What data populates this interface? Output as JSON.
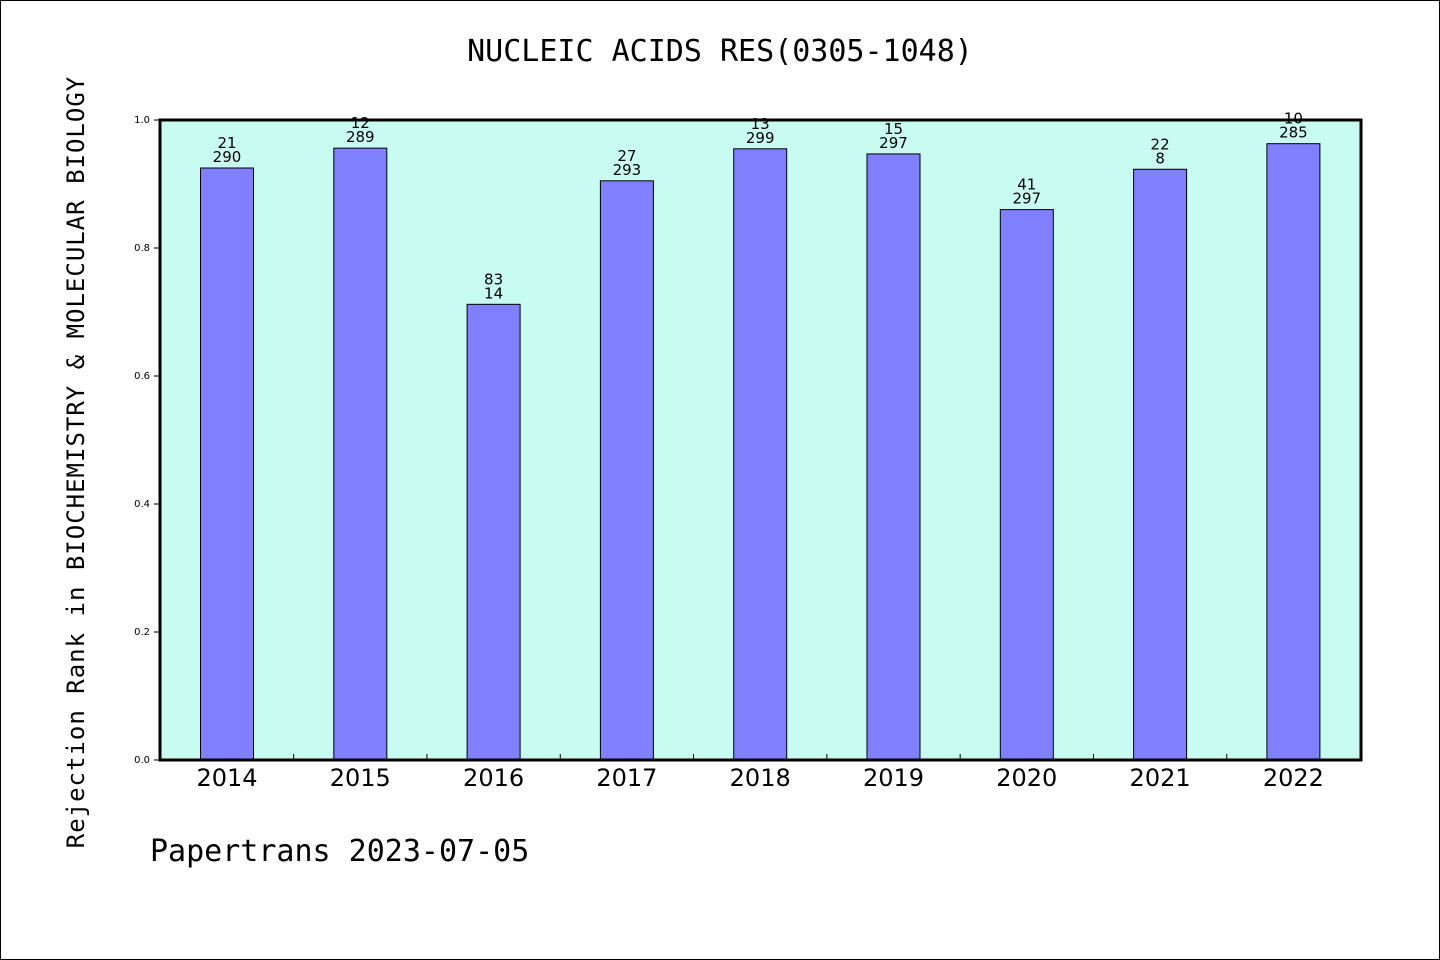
{
  "chart_data": {
    "type": "bar",
    "title": "NUCLEIC ACIDS RES(0305-1048)",
    "ylabel": "Rejection Rank in BIOCHEMISTRY & MOLECULAR BIOLOGY",
    "xlabel": "",
    "ylim": [
      0,
      1.0
    ],
    "yticks": [
      "0.0",
      "0.2",
      "0.4",
      "0.6",
      "0.8",
      "1.0"
    ],
    "categories": [
      "2014",
      "2015",
      "2016",
      "2017",
      "2018",
      "2019",
      "2020",
      "2021",
      "2022"
    ],
    "values": [
      0.925,
      0.956,
      0.712,
      0.905,
      0.955,
      0.947,
      0.86,
      0.923,
      0.963
    ],
    "labels_top": [
      "21",
      "12",
      "83",
      "27",
      "13",
      "15",
      "41",
      "22",
      "10"
    ],
    "labels_bottom": [
      "290",
      "289",
      "14",
      "293",
      "299",
      "297",
      "297",
      "8",
      "285"
    ],
    "colors": {
      "plot_bg": "#c8fcf0",
      "bar": "#8080ff"
    },
    "grid": false
  },
  "footer": {
    "text": "Papertrans 2023-07-05"
  }
}
